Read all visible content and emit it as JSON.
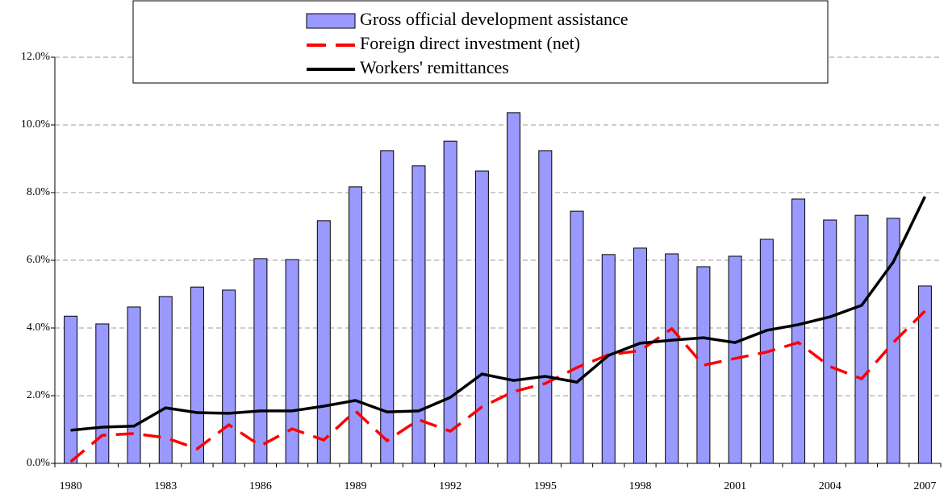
{
  "chart_data": {
    "type": "bar_line",
    "categories": [
      "1980",
      null,
      null,
      "1983",
      null,
      null,
      "1986",
      null,
      null,
      "1989",
      null,
      null,
      "1992",
      null,
      null,
      "1995",
      null,
      null,
      "1998",
      null,
      null,
      "2001",
      null,
      null,
      "2004",
      null,
      null,
      "2007"
    ],
    "series": [
      {
        "name": "Gross official development assistance",
        "type": "bar",
        "color": "#9999ff",
        "values": [
          4.35,
          4.12,
          4.62,
          4.93,
          5.21,
          5.12,
          6.05,
          6.02,
          7.17,
          8.17,
          9.24,
          8.79,
          9.52,
          8.64,
          10.36,
          9.24,
          7.45,
          6.17,
          6.36,
          6.19,
          5.81,
          6.12,
          6.62,
          7.81,
          7.19,
          7.33,
          7.24,
          5.24
        ]
      },
      {
        "name": "Foreign direct investment (net)",
        "type": "dashed-line",
        "color": "#ff0000",
        "values": [
          0.05,
          0.83,
          0.88,
          0.76,
          0.43,
          1.14,
          0.52,
          1.02,
          0.69,
          1.55,
          0.67,
          1.29,
          0.95,
          1.67,
          2.12,
          2.36,
          2.83,
          3.21,
          3.33,
          3.98,
          2.9,
          3.1,
          3.29,
          3.57,
          2.86,
          2.5,
          3.57,
          4.5
        ]
      },
      {
        "name": "Workers' remittances",
        "type": "line",
        "color": "#000000",
        "values": [
          0.98,
          1.07,
          1.1,
          1.64,
          1.5,
          1.48,
          1.55,
          1.55,
          1.69,
          1.86,
          1.52,
          1.55,
          1.95,
          2.64,
          2.45,
          2.57,
          2.4,
          3.19,
          3.55,
          3.64,
          3.71,
          3.57,
          3.93,
          4.1,
          4.33,
          4.67,
          5.95,
          7.88
        ]
      }
    ],
    "ylim": [
      0,
      12
    ],
    "yticks": [
      {
        "value": 0,
        "label": "0.0%"
      },
      {
        "value": 2,
        "label": "2.0%"
      },
      {
        "value": 4,
        "label": "4.0%"
      },
      {
        "value": 6,
        "label": "6.0%"
      },
      {
        "value": 8,
        "label": "8.0%"
      },
      {
        "value": 10,
        "label": "10.0%"
      },
      {
        "value": 12,
        "label": "12.0%"
      }
    ],
    "grid": true
  }
}
